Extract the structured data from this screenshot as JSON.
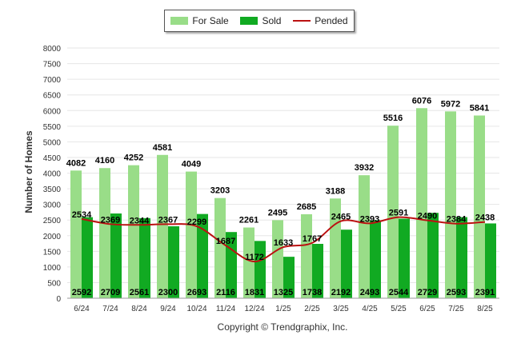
{
  "chart_data": {
    "type": "bar",
    "categories": [
      "6/24",
      "7/24",
      "8/24",
      "9/24",
      "10/24",
      "11/24",
      "12/24",
      "1/25",
      "2/25",
      "3/25",
      "4/25",
      "5/25",
      "6/25",
      "7/25",
      "8/25"
    ],
    "series": [
      {
        "name": "For Sale",
        "type": "bar",
        "color": "#99dd88",
        "values": [
          4082,
          4160,
          4252,
          4581,
          4049,
          3203,
          2261,
          2495,
          2685,
          3188,
          3932,
          5516,
          6076,
          5972,
          5841
        ]
      },
      {
        "name": "Sold",
        "type": "bar",
        "color": "#11aa22",
        "values": [
          2592,
          2709,
          2561,
          2300,
          2693,
          2116,
          1831,
          1325,
          1738,
          2192,
          2493,
          2544,
          2729,
          2593,
          2391
        ]
      },
      {
        "name": "Pended",
        "type": "line",
        "color": "#bb1111",
        "values": [
          2534,
          2369,
          2344,
          2367,
          2299,
          1687,
          1172,
          1633,
          1767,
          2465,
          2393,
          2591,
          2490,
          2384,
          2438
        ]
      }
    ],
    "ylabel": "Number of Homes",
    "ylim": [
      0,
      8000
    ],
    "yticks": [
      0,
      500,
      1000,
      1500,
      2000,
      2500,
      3000,
      3500,
      4000,
      4500,
      5000,
      5500,
      6000,
      6500,
      7000,
      7500,
      8000
    ],
    "grid": true,
    "legend_position": "top-center"
  },
  "footer": {
    "copyright": "Copyright © Trendgraphix, Inc."
  }
}
